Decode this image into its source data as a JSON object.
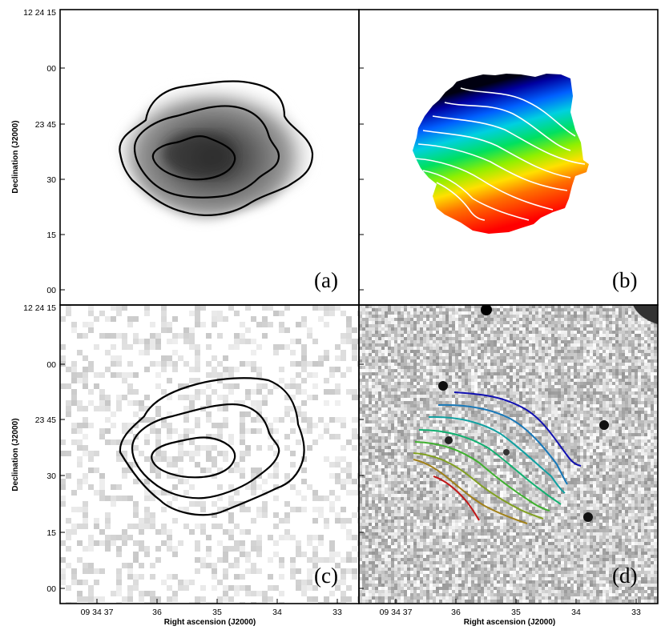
{
  "figure": {
    "panels": [
      {
        "id": "a",
        "label": "(a)"
      },
      {
        "id": "b",
        "label": "(b)"
      },
      {
        "id": "c",
        "label": "(c)"
      },
      {
        "id": "d",
        "label": "(d)"
      }
    ],
    "y_axis": {
      "label": "Declination (J2000)",
      "ticks": [
        "12 24 15",
        "00",
        "23 45",
        "30",
        "15",
        "00"
      ]
    },
    "x_axis": {
      "label": "Right ascension (J2000)",
      "ticks": [
        "09 34 37",
        "36",
        "35",
        "34",
        "33"
      ]
    },
    "colors": {
      "velocity_contours": [
        "#1010b0",
        "#1878b8",
        "#10a0a0",
        "#10b070",
        "#40b030",
        "#80a020",
        "#a08018",
        "#b05010",
        "#c01818"
      ]
    }
  }
}
